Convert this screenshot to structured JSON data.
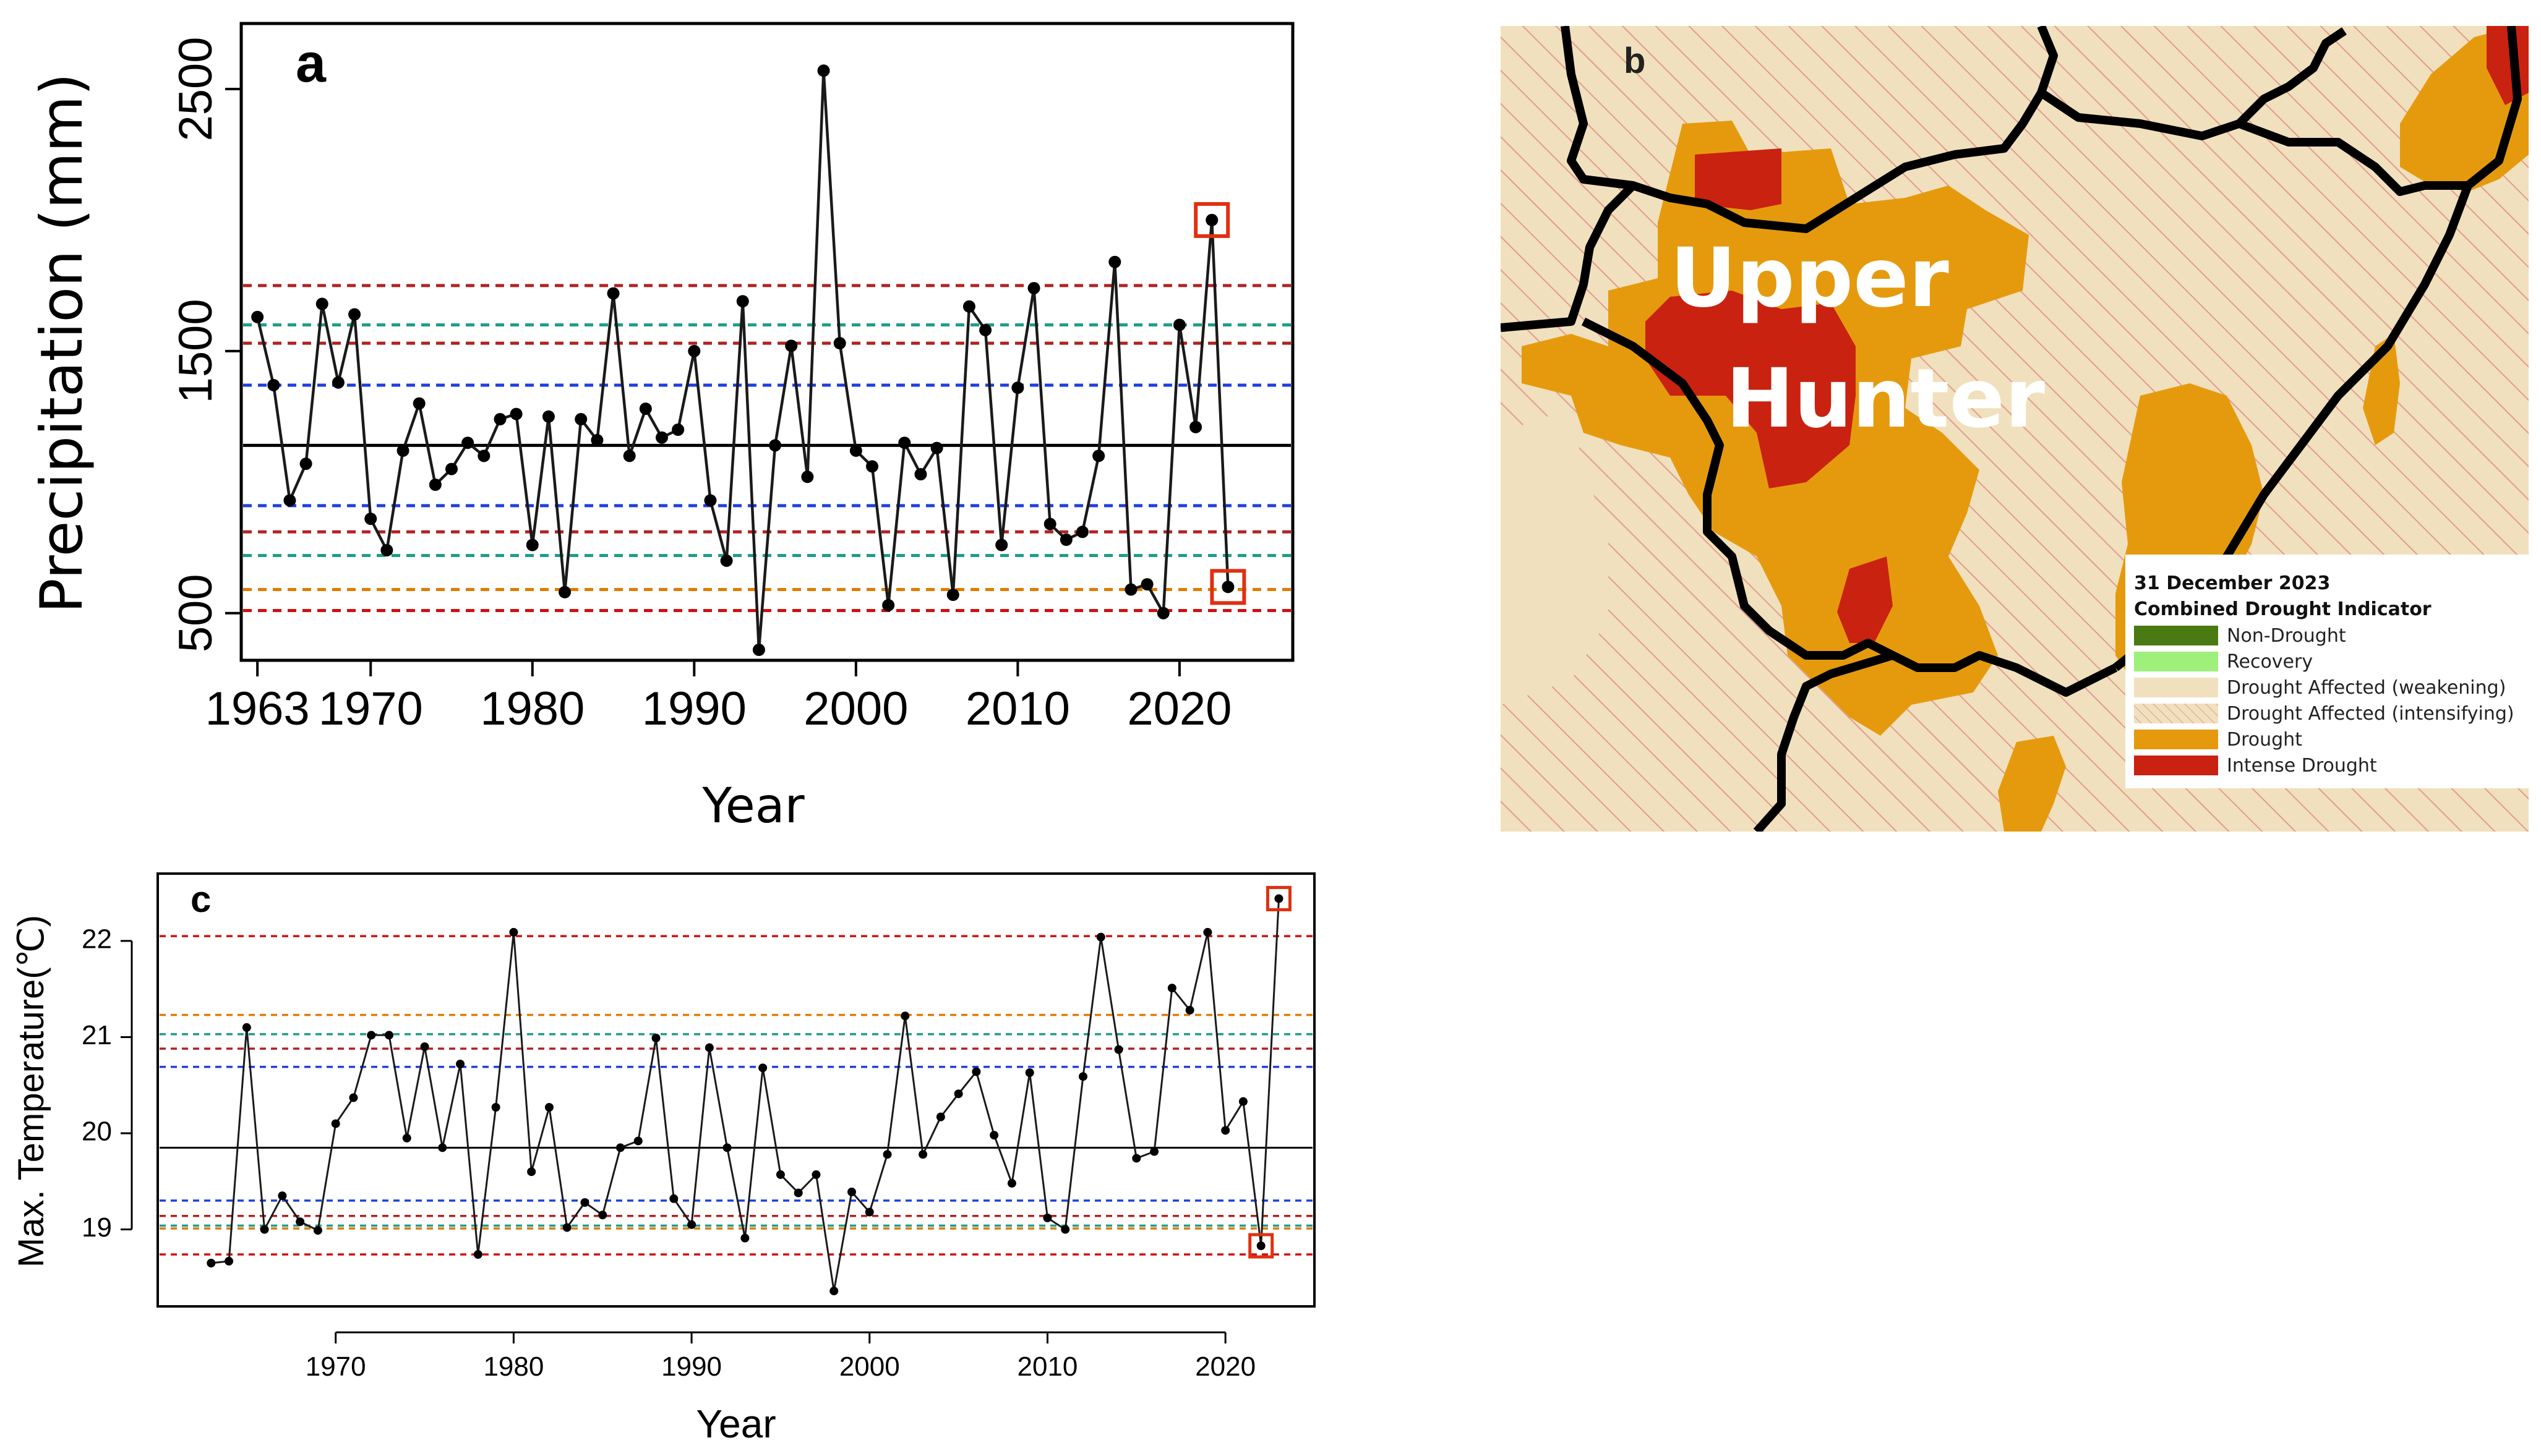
{
  "chart_data": [
    {
      "type": "line",
      "panel": "a",
      "title": "",
      "xlabel": "Year",
      "ylabel": "Precipitation (mm)",
      "xlim": [
        1962,
        2027
      ],
      "ylim": [
        320,
        2750
      ],
      "x_ticks": [
        1963,
        1970,
        1980,
        1990,
        2000,
        2010,
        2020
      ],
      "y_ticks": [
        500,
        1500,
        2500
      ],
      "x": [
        1963,
        1964,
        1965,
        1966,
        1967,
        1968,
        1969,
        1970,
        1971,
        1972,
        1973,
        1974,
        1975,
        1976,
        1977,
        1978,
        1979,
        1980,
        1981,
        1982,
        1983,
        1984,
        1985,
        1986,
        1987,
        1988,
        1989,
        1990,
        1991,
        1992,
        1993,
        1994,
        1995,
        1996,
        1997,
        1998,
        1999,
        2000,
        2001,
        2002,
        2003,
        2004,
        2005,
        2006,
        2007,
        2008,
        2009,
        2010,
        2011,
        2012,
        2013,
        2014,
        2015,
        2016,
        2017,
        2018,
        2019,
        2020,
        2021,
        2022,
        2023
      ],
      "values": [
        1630,
        1370,
        930,
        1070,
        1680,
        1380,
        1640,
        860,
        740,
        1120,
        1300,
        990,
        1050,
        1150,
        1100,
        1240,
        1260,
        760,
        1250,
        580,
        1240,
        1160,
        1720,
        1100,
        1280,
        1170,
        1200,
        1500,
        930,
        700,
        1690,
        360,
        1140,
        1520,
        1020,
        2570,
        1530,
        1120,
        1060,
        530,
        1150,
        1030,
        1130,
        570,
        1670,
        1580,
        760,
        1360,
        1740,
        840,
        780,
        810,
        1100,
        1840,
        590,
        610,
        500,
        1600,
        1210,
        2000,
        600
      ],
      "reference_lines": [
        {
          "value": 1140,
          "color": "#000000",
          "style": "solid"
        },
        {
          "value": 1750,
          "color": "#b22222",
          "style": "dashed"
        },
        {
          "value": 1600,
          "color": "#1f9e89",
          "style": "dashed"
        },
        {
          "value": 1530,
          "color": "#b22222",
          "style": "dashed"
        },
        {
          "value": 1370,
          "color": "#1f3fe0",
          "style": "dashed"
        },
        {
          "value": 910,
          "color": "#1f3fe0",
          "style": "dashed"
        },
        {
          "value": 810,
          "color": "#b22222",
          "style": "dashed"
        },
        {
          "value": 720,
          "color": "#1f9e89",
          "style": "dashed"
        },
        {
          "value": 590,
          "color": "#e07b00",
          "style": "dashed"
        },
        {
          "value": 510,
          "color": "#d01010",
          "style": "dashed"
        }
      ],
      "highlighted_years": [
        2022,
        2023
      ],
      "highlight_color": "#e03010"
    },
    {
      "type": "line",
      "panel": "c",
      "title": "",
      "xlabel": "Year",
      "ylabel": "Max. Temperature(℃)",
      "xlim": [
        1960,
        2025
      ],
      "ylim": [
        18.2,
        22.7
      ],
      "x_ticks": [
        1970,
        1980,
        1990,
        2000,
        2010,
        2020
      ],
      "y_ticks": [
        19,
        20,
        21,
        22
      ],
      "x": [
        1963,
        1964,
        1965,
        1966,
        1967,
        1968,
        1969,
        1970,
        1971,
        1972,
        1973,
        1974,
        1975,
        1976,
        1977,
        1978,
        1979,
        1980,
        1981,
        1982,
        1983,
        1984,
        1985,
        1986,
        1987,
        1988,
        1989,
        1990,
        1991,
        1992,
        1993,
        1994,
        1995,
        1996,
        1997,
        1998,
        1999,
        2000,
        2001,
        2002,
        2003,
        2004,
        2005,
        2006,
        2007,
        2008,
        2009,
        2010,
        2011,
        2012,
        2013,
        2014,
        2015,
        2016,
        2017,
        2018,
        2019,
        2020,
        2021,
        2022,
        2023
      ],
      "values": [
        18.65,
        18.67,
        21.1,
        19.0,
        19.35,
        19.08,
        18.99,
        20.1,
        20.37,
        21.02,
        21.02,
        19.95,
        20.9,
        19.85,
        20.72,
        18.74,
        20.27,
        22.09,
        19.6,
        20.27,
        19.02,
        19.28,
        19.15,
        19.85,
        19.92,
        20.99,
        19.32,
        19.05,
        20.89,
        19.85,
        18.91,
        20.68,
        19.57,
        19.38,
        19.57,
        18.36,
        19.39,
        19.18,
        19.78,
        21.22,
        19.78,
        20.17,
        20.41,
        20.64,
        19.98,
        19.48,
        20.63,
        19.12,
        19.0,
        20.59,
        22.04,
        20.87,
        19.74,
        19.81,
        21.51,
        21.28,
        22.09,
        20.03,
        20.33,
        18.83,
        22.44
      ],
      "reference_lines": [
        {
          "value": 19.85,
          "color": "#000000",
          "style": "solid"
        },
        {
          "value": 22.05,
          "color": "#d01010",
          "style": "dashed"
        },
        {
          "value": 21.23,
          "color": "#e07b00",
          "style": "dashed"
        },
        {
          "value": 21.03,
          "color": "#1f9e89",
          "style": "dashed"
        },
        {
          "value": 20.88,
          "color": "#b22222",
          "style": "dashed"
        },
        {
          "value": 20.69,
          "color": "#1f3fe0",
          "style": "dashed"
        },
        {
          "value": 19.3,
          "color": "#1f3fe0",
          "style": "dashed"
        },
        {
          "value": 19.14,
          "color": "#b22222",
          "style": "dashed"
        },
        {
          "value": 19.04,
          "color": "#1f9e89",
          "style": "dashed"
        },
        {
          "value": 19.01,
          "color": "#e07b00",
          "style": "dashed"
        },
        {
          "value": 18.74,
          "color": "#d01010",
          "style": "dashed"
        }
      ],
      "highlighted_years": [
        2022,
        2023
      ],
      "highlight_color": "#e03010"
    }
  ],
  "map": {
    "panel": "b",
    "region_label_line1": "Upper",
    "region_label_line2": "Hunter",
    "legend": {
      "date": "31 December 2023",
      "title": "Combined Drought Indicator",
      "items": [
        {
          "label": "Non-Drought",
          "color": "#4a7a12"
        },
        {
          "label": "Recovery",
          "color": "#9ef07a"
        },
        {
          "label": "Drought Affected (weakening)",
          "color": "#f1e0bd"
        },
        {
          "label": "Drought Affected (intensifying)",
          "color": "#f1e0bd",
          "hatched": true
        },
        {
          "label": "Drought",
          "color": "#e59a0e"
        },
        {
          "label": "Intense Drought",
          "color": "#c92210"
        }
      ]
    }
  }
}
